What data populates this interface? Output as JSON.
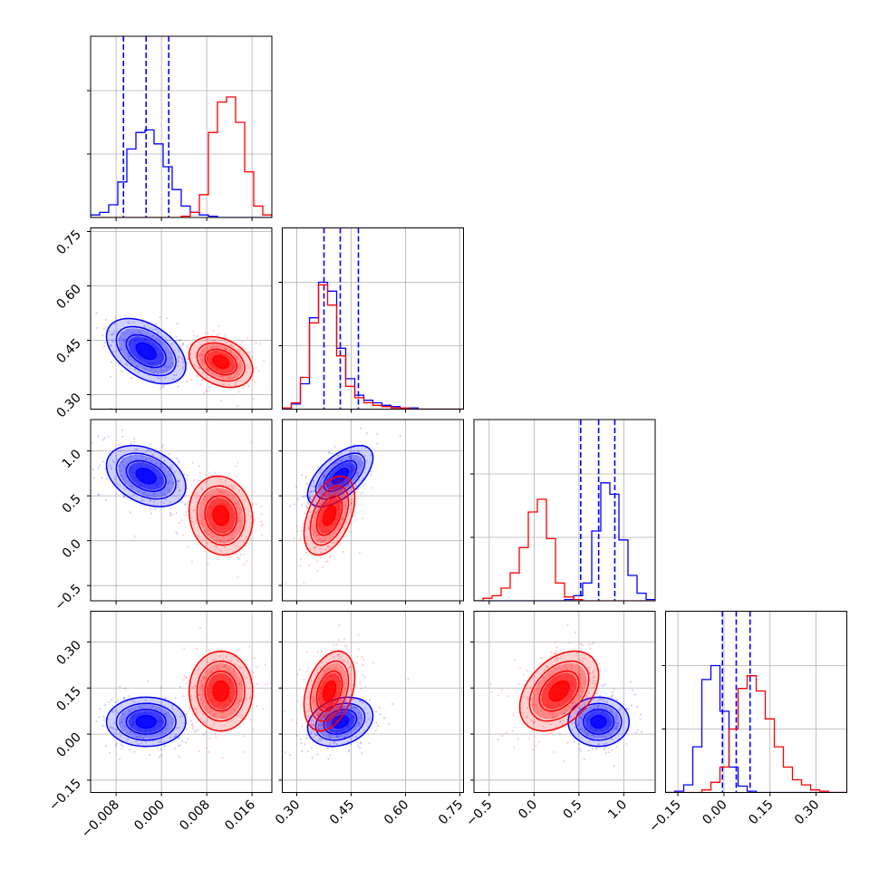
{
  "chart_data": {
    "type": "corner",
    "title": "",
    "grid": true,
    "parameters": [
      {
        "range": [
          -0.0125,
          0.0195
        ],
        "ticks": [
          -0.008,
          0.0,
          0.008,
          0.016
        ],
        "tick_labels": [
          "−0.008",
          "0.000",
          "0.008",
          "0.016"
        ]
      },
      {
        "range": [
          0.26,
          0.76
        ],
        "ticks": [
          0.3,
          0.45,
          0.6,
          0.75
        ],
        "tick_labels": [
          "0.30",
          "0.45",
          "0.60",
          "0.75"
        ]
      },
      {
        "range": [
          -0.67,
          1.35
        ],
        "ticks": [
          -0.5,
          0.0,
          0.5,
          1.0
        ],
        "tick_labels": [
          "−0.5",
          "0.0",
          "0.5",
          "1.0"
        ]
      },
      {
        "range": [
          -0.19,
          0.4
        ],
        "ticks": [
          -0.15,
          0.0,
          0.15,
          0.3
        ],
        "tick_labels": [
          "−0.15",
          "0.00",
          "0.15",
          "0.30"
        ]
      }
    ],
    "series": [
      {
        "color": "#0000ff",
        "means": [
          -0.0027,
          0.42,
          0.72,
          0.04
        ],
        "sigmas": [
          0.0035,
          0.045,
          0.17,
          0.04
        ],
        "correlations": [
          [
            0,
            1,
            -0.45
          ],
          [
            0,
            2,
            -0.35
          ],
          [
            0,
            3,
            0.0
          ],
          [
            1,
            2,
            0.6
          ],
          [
            1,
            3,
            0.25
          ],
          [
            2,
            3,
            0.0
          ]
        ],
        "quantiles": [
          [
            -0.0067,
            -0.0027,
            0.0013
          ],
          [
            0.375,
            0.42,
            0.47
          ],
          [
            0.52,
            0.72,
            0.9
          ],
          [
            -0.005,
            0.04,
            0.085
          ]
        ],
        "histograms": [
          [
            2,
            4,
            10,
            28,
            54,
            67,
            69,
            58,
            40,
            22,
            9,
            4,
            2,
            1,
            0,
            0,
            0,
            0,
            0,
            0
          ],
          [
            0,
            4,
            20,
            72,
            100,
            93,
            48,
            24,
            11,
            7,
            5,
            3,
            2,
            1,
            1,
            0,
            0,
            0,
            0,
            0
          ],
          [
            0,
            0,
            0,
            0,
            0,
            0,
            0,
            0,
            0,
            0,
            1,
            4,
            14,
            55,
            93,
            84,
            48,
            20,
            6,
            1
          ],
          [
            0,
            1,
            6,
            36,
            89,
            100,
            64,
            20,
            5,
            1,
            0,
            0,
            0,
            0,
            0,
            0,
            0,
            0,
            0,
            0
          ]
        ]
      },
      {
        "color": "#ff0000",
        "means": [
          0.0105,
          0.39,
          0.28,
          0.14
        ],
        "sigmas": [
          0.0028,
          0.035,
          0.22,
          0.065
        ],
        "correlations": [
          [
            0,
            1,
            -0.3
          ],
          [
            0,
            2,
            -0.1
          ],
          [
            0,
            3,
            0.0
          ],
          [
            1,
            2,
            0.45
          ],
          [
            1,
            3,
            0.35
          ],
          [
            2,
            3,
            0.4
          ]
        ],
        "quantiles": [],
        "histograms": [
          [
            0,
            0,
            0,
            0,
            0,
            0,
            0,
            0,
            0,
            0,
            1,
            4,
            18,
            67,
            91,
            95,
            75,
            36,
            9,
            2
          ],
          [
            1,
            5,
            25,
            68,
            98,
            82,
            42,
            18,
            9,
            5,
            3,
            2,
            1,
            1,
            0,
            0,
            0,
            0,
            0,
            0
          ],
          [
            0,
            2,
            4,
            10,
            22,
            42,
            70,
            80,
            49,
            14,
            3,
            1,
            0,
            0,
            0,
            0,
            0,
            0,
            0,
            0
          ],
          [
            0,
            0,
            0,
            0,
            2,
            8,
            20,
            50,
            82,
            92,
            80,
            58,
            36,
            20,
            10,
            6,
            2,
            1,
            0,
            0
          ]
        ]
      }
    ]
  }
}
